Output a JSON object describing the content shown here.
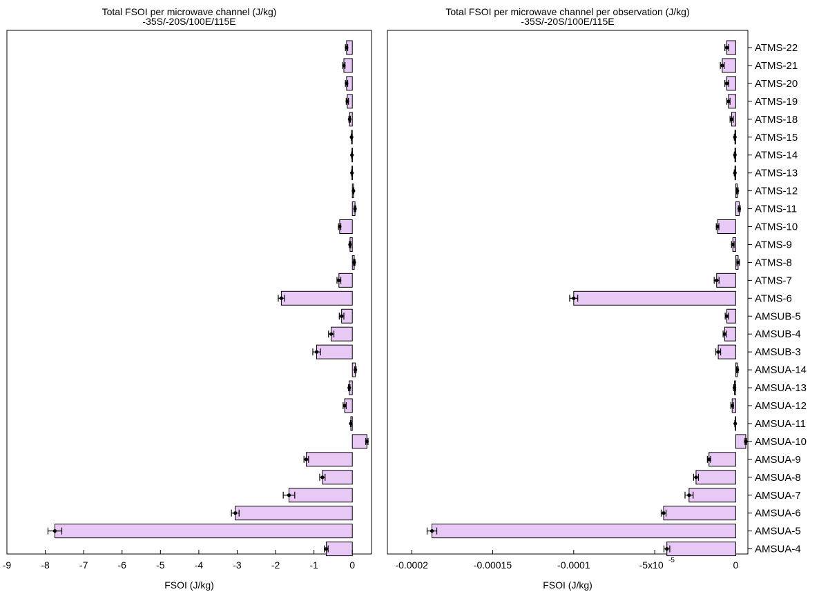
{
  "chart_data": [
    {
      "type": "bar",
      "orientation": "horizontal",
      "title": "Total FSOI per microwave channel (J/kg)",
      "subtitle": "-35S/-20S/100E/115E",
      "xlabel": "FSOI (J/kg)",
      "ylabel": "",
      "xlim": [
        -9,
        0.5
      ],
      "xticks": [
        "-9",
        "-8",
        "-7",
        "-6",
        "-5",
        "-4",
        "-3",
        "-2",
        "-1",
        "0"
      ],
      "grid": false,
      "bar_color": "#e8c8f5",
      "categories": [
        "ATMS-22",
        "ATMS-21",
        "ATMS-20",
        "ATMS-19",
        "ATMS-18",
        "ATMS-15",
        "ATMS-14",
        "ATMS-13",
        "ATMS-12",
        "ATMS-11",
        "ATMS-10",
        "ATMS-9",
        "ATMS-8",
        "ATMS-7",
        "ATMS-6",
        "AMSUB-5",
        "AMSUB-4",
        "AMSUB-3",
        "AMSUA-14",
        "AMSUA-13",
        "AMSUA-12",
        "AMSUA-11",
        "AMSUA-10",
        "AMSUA-9",
        "AMSUA-8",
        "AMSUA-7",
        "AMSUA-6",
        "AMSUA-5",
        "AMSUA-4"
      ],
      "values": [
        -0.15,
        -0.22,
        -0.15,
        -0.13,
        -0.07,
        -0.02,
        -0.01,
        -0.01,
        0.03,
        0.07,
        -0.33,
        -0.06,
        0.05,
        -0.35,
        -1.85,
        -0.28,
        -0.55,
        -0.93,
        0.08,
        -0.08,
        -0.2,
        -0.04,
        0.38,
        -1.2,
        -0.78,
        -1.65,
        -3.05,
        -7.75,
        -0.68
      ],
      "errors": [
        0.03,
        0.03,
        0.03,
        0.03,
        0.02,
        0.01,
        0.01,
        0.01,
        0.01,
        0.02,
        0.03,
        0.02,
        0.02,
        0.05,
        0.08,
        0.06,
        0.07,
        0.1,
        0.02,
        0.02,
        0.04,
        0.01,
        0.03,
        0.06,
        0.07,
        0.15,
        0.1,
        0.18,
        0.05
      ]
    },
    {
      "type": "bar",
      "orientation": "horizontal",
      "title": "Total FSOI per microwave channel per observation (J/kg)",
      "subtitle": "-35S/-20S/100E/115E",
      "xlabel": "FSOI (J/kg)",
      "ylabel": "",
      "xlim": [
        -0.000215,
        7.5e-06
      ],
      "xticks": [
        "-0.0002",
        "-0.00015",
        "-0.0001",
        "-5x10",
        "0"
      ],
      "xtick_exponent": "-5",
      "grid": false,
      "bar_color": "#e8c8f5",
      "categories": [
        "ATMS-22",
        "ATMS-21",
        "ATMS-20",
        "ATMS-19",
        "ATMS-18",
        "ATMS-15",
        "ATMS-14",
        "ATMS-13",
        "ATMS-12",
        "ATMS-11",
        "ATMS-10",
        "ATMS-9",
        "ATMS-8",
        "ATMS-7",
        "ATMS-6",
        "AMSUB-5",
        "AMSUB-4",
        "AMSUB-3",
        "AMSUA-14",
        "AMSUA-13",
        "AMSUA-12",
        "AMSUA-11",
        "AMSUA-10",
        "AMSUA-9",
        "AMSUA-8",
        "AMSUA-7",
        "AMSUA-6",
        "AMSUA-5",
        "AMSUA-4"
      ],
      "values": [
        -5.5e-06,
        -8.3e-06,
        -5.5e-06,
        -4.5e-06,
        -2.5e-06,
        -5e-07,
        -5e-07,
        -5e-07,
        1e-06,
        2.2e-06,
        -1.12e-05,
        -1.8e-06,
        1.5e-06,
        -1.18e-05,
        -0.0001,
        -5.5e-06,
        -6.8e-06,
        -1.08e-05,
        1e-06,
        -8e-07,
        -2.2e-06,
        -3e-07,
        6.2e-06,
        -1.65e-05,
        -2.45e-05,
        -2.88e-05,
        -4.45e-05,
        -0.0001875,
        -4.25e-05
      ],
      "errors": [
        1.2e-06,
        1.2e-06,
        1.2e-06,
        1e-06,
        1e-06,
        4e-07,
        4e-07,
        4e-07,
        5e-07,
        6e-07,
        8e-07,
        8e-07,
        8e-07,
        1.5e-06,
        2.5e-06,
        1e-06,
        1e-06,
        1.5e-06,
        5e-07,
        5e-07,
        8e-07,
        3e-07,
        5e-07,
        1e-06,
        1.5e-06,
        2.5e-06,
        1.5e-06,
        3e-06,
        1.8e-06
      ]
    }
  ]
}
